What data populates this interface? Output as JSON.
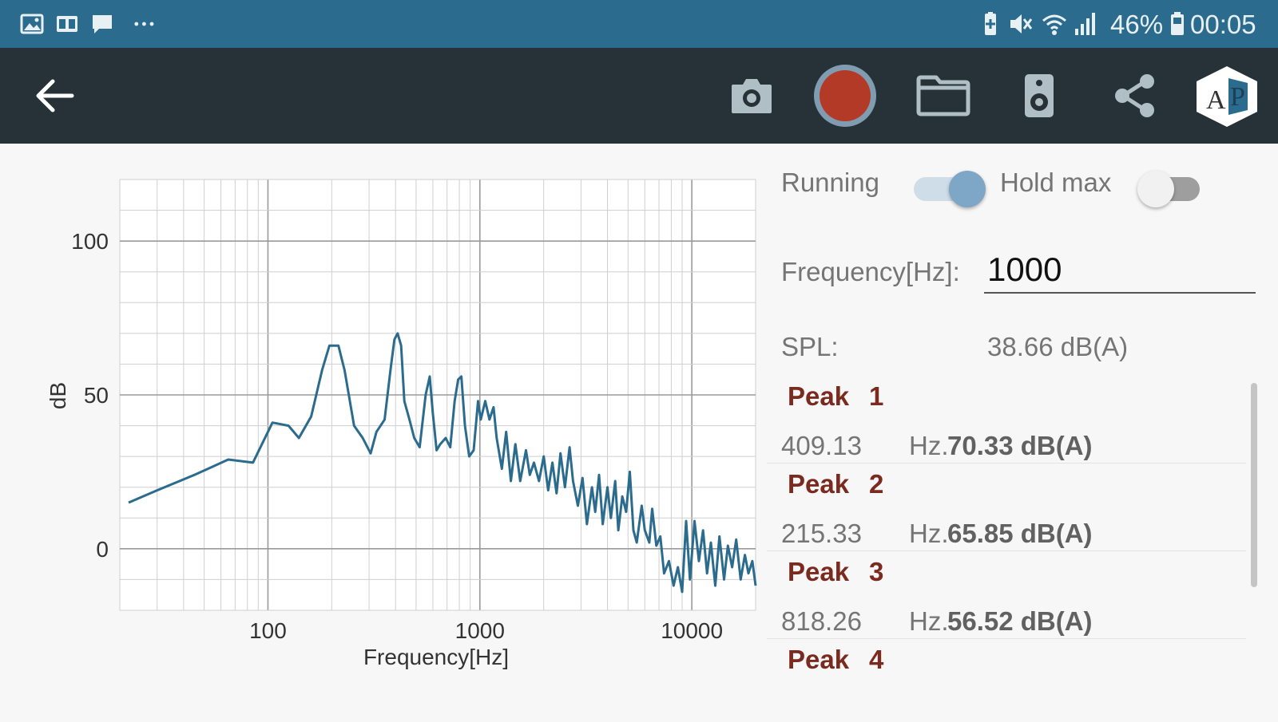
{
  "status_bar": {
    "battery_text": "46%",
    "time": "00:05",
    "left_icons": [
      "image-icon",
      "cast-icon",
      "message-icon",
      "more-icon"
    ],
    "right_icons": [
      "battery-saver-icon",
      "mute-icon",
      "wifi-icon",
      "signal-icon",
      "battery-icon"
    ]
  },
  "toolbar": {
    "icons": [
      "back-arrow-icon",
      "camera-icon",
      "record-button",
      "folder-icon",
      "speaker-icon",
      "share-icon",
      "app-logo"
    ],
    "logo_text": "AP",
    "colors": {
      "background": "#263238",
      "record": "#b23a26",
      "record_ring": "#7f9cb0"
    }
  },
  "controls": {
    "running_label": "Running",
    "running_on": true,
    "hold_max_label": "Hold max",
    "hold_max_on": false,
    "frequency_label": "Frequency[Hz]:",
    "frequency_value": "1000",
    "spl_label": "SPL:",
    "spl_value": "38.66 dB(A)"
  },
  "peaks": [
    {
      "title": "Peak",
      "num": "1",
      "hz": "409.13",
      "hz_unit": "Hz.",
      "db": "70.33 dB(A)"
    },
    {
      "title": "Peak",
      "num": "2",
      "hz": "215.33",
      "hz_unit": "Hz.",
      "db": "65.85 dB(A)"
    },
    {
      "title": "Peak",
      "num": "3",
      "hz": "818.26",
      "hz_unit": "Hz.",
      "db": "56.52 dB(A)"
    },
    {
      "title": "Peak",
      "num": "4",
      "hz": "",
      "hz_unit": "",
      "db": ""
    }
  ],
  "chart_data": {
    "type": "line",
    "xlabel": "Frequency[Hz]",
    "ylabel": "dB",
    "x_scale": "log",
    "xlim": [
      20,
      20000
    ],
    "ylim": [
      -20,
      120
    ],
    "x_ticks": [
      "100",
      "1000",
      "10000"
    ],
    "y_ticks": [
      "0",
      "50",
      "100"
    ],
    "grid": true,
    "color": "#2b6b8e",
    "series": [
      {
        "values": [
          [
            22,
            15
          ],
          [
            30,
            19
          ],
          [
            45,
            24
          ],
          [
            65,
            29
          ],
          [
            85,
            28
          ],
          [
            105,
            41
          ],
          [
            125,
            40
          ],
          [
            140,
            36
          ],
          [
            160,
            43
          ],
          [
            180,
            58
          ],
          [
            195,
            66
          ],
          [
            215,
            66
          ],
          [
            230,
            58
          ],
          [
            255,
            40
          ],
          [
            280,
            36
          ],
          [
            305,
            31
          ],
          [
            325,
            38
          ],
          [
            355,
            42
          ],
          [
            380,
            59
          ],
          [
            395,
            68
          ],
          [
            409,
            70
          ],
          [
            425,
            66
          ],
          [
            440,
            48
          ],
          [
            465,
            42
          ],
          [
            490,
            36
          ],
          [
            520,
            33
          ],
          [
            555,
            50
          ],
          [
            580,
            56
          ],
          [
            600,
            44
          ],
          [
            625,
            32
          ],
          [
            650,
            34
          ],
          [
            690,
            36
          ],
          [
            725,
            33
          ],
          [
            760,
            48
          ],
          [
            790,
            55
          ],
          [
            818,
            56
          ],
          [
            850,
            40
          ],
          [
            890,
            30
          ],
          [
            935,
            32
          ],
          [
            980,
            48
          ],
          [
            1010,
            42
          ],
          [
            1060,
            48
          ],
          [
            1110,
            42
          ],
          [
            1160,
            46
          ],
          [
            1200,
            36
          ],
          [
            1270,
            26
          ],
          [
            1330,
            38
          ],
          [
            1400,
            22
          ],
          [
            1470,
            34
          ],
          [
            1550,
            22
          ],
          [
            1650,
            32
          ],
          [
            1720,
            24
          ],
          [
            1800,
            28
          ],
          [
            1900,
            22
          ],
          [
            2000,
            30
          ],
          [
            2100,
            19
          ],
          [
            2200,
            28
          ],
          [
            2300,
            18
          ],
          [
            2400,
            31
          ],
          [
            2520,
            20
          ],
          [
            2650,
            33
          ],
          [
            2750,
            22
          ],
          [
            2900,
            14
          ],
          [
            3050,
            23
          ],
          [
            3200,
            8
          ],
          [
            3380,
            20
          ],
          [
            3500,
            12
          ],
          [
            3650,
            24
          ],
          [
            3800,
            8
          ],
          [
            4000,
            20
          ],
          [
            4150,
            10
          ],
          [
            4350,
            22
          ],
          [
            4500,
            6
          ],
          [
            4700,
            17
          ],
          [
            4900,
            12
          ],
          [
            5100,
            25
          ],
          [
            5300,
            6
          ],
          [
            5500,
            2
          ],
          [
            5800,
            14
          ],
          [
            6000,
            6
          ],
          [
            6300,
            2
          ],
          [
            6500,
            13
          ],
          [
            6800,
            1
          ],
          [
            7100,
            4
          ],
          [
            7400,
            -8
          ],
          [
            7800,
            -4
          ],
          [
            8200,
            -12
          ],
          [
            8600,
            -6
          ],
          [
            9000,
            -14
          ],
          [
            9400,
            9
          ],
          [
            9800,
            -10
          ],
          [
            10300,
            9
          ],
          [
            10800,
            -4
          ],
          [
            11300,
            6
          ],
          [
            11800,
            -8
          ],
          [
            12300,
            2
          ],
          [
            12900,
            -12
          ],
          [
            13500,
            4
          ],
          [
            14200,
            -10
          ],
          [
            14800,
            1
          ],
          [
            15500,
            -6
          ],
          [
            16200,
            3
          ],
          [
            17000,
            -10
          ],
          [
            17800,
            -2
          ],
          [
            18500,
            -8
          ],
          [
            19300,
            -4
          ],
          [
            20000,
            -12
          ]
        ]
      }
    ]
  }
}
